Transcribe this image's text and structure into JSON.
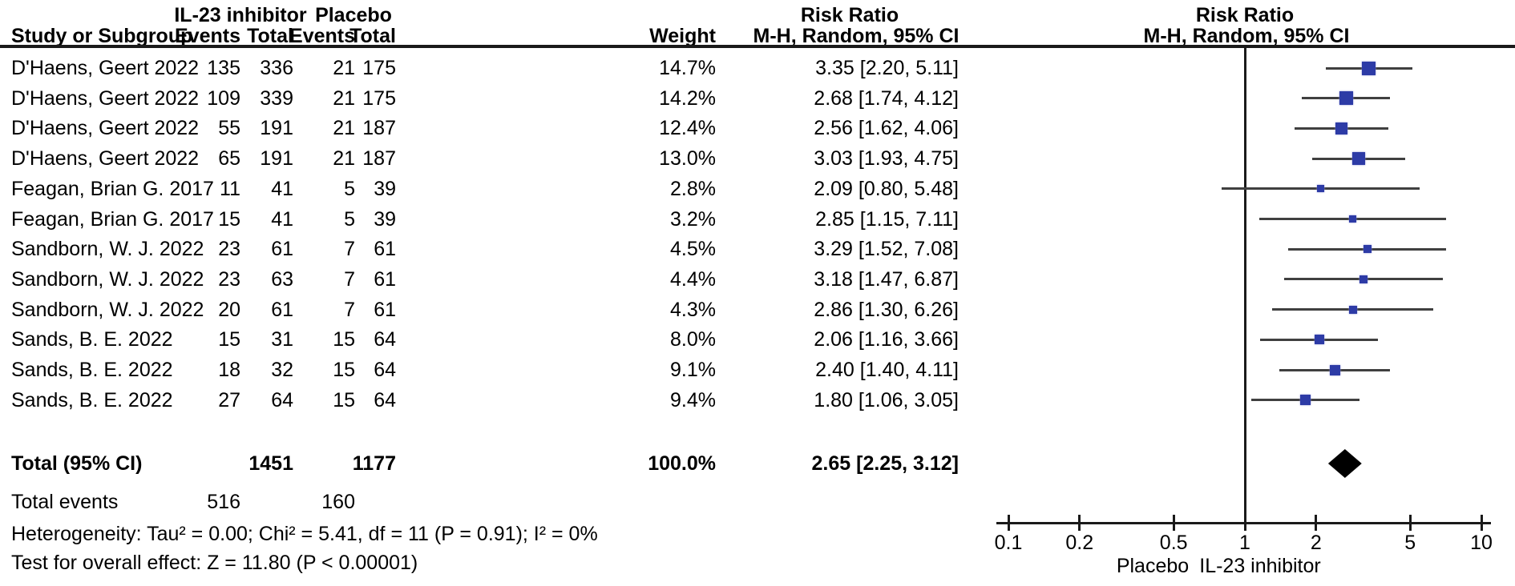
{
  "header": {
    "col_study": "Study or Subgroup",
    "group1": "IL-23 inhibitor",
    "group2": "Placebo",
    "col_events": "Events",
    "col_total": "Total",
    "col_weight": "Weight",
    "rr_title": "Risk Ratio",
    "rr_subtitle": "M-H, Random, 95% CI"
  },
  "chart_data": {
    "type": "forest",
    "x_scale": "log",
    "x_range": [
      0.1,
      10
    ],
    "x_ticks": [
      "0.1",
      "0.2",
      "0.5",
      "1",
      "2",
      "5",
      "10"
    ],
    "axis_labels": {
      "left": "Placebo",
      "right": "IL-23 inhibitor"
    },
    "studies": [
      {
        "study": "D'Haens, Geert 2022",
        "events1": "135",
        "total1": "336",
        "events2": "21",
        "total2": "175",
        "weight": "14.7%",
        "rr": 3.35,
        "lo": 2.2,
        "hi": 5.11,
        "rr_text": "3.35 [2.20, 5.11]"
      },
      {
        "study": "D'Haens, Geert 2022",
        "events1": "109",
        "total1": "339",
        "events2": "21",
        "total2": "175",
        "weight": "14.2%",
        "rr": 2.68,
        "lo": 1.74,
        "hi": 4.12,
        "rr_text": "2.68 [1.74, 4.12]"
      },
      {
        "study": "D'Haens, Geert 2022",
        "events1": "55",
        "total1": "191",
        "events2": "21",
        "total2": "187",
        "weight": "12.4%",
        "rr": 2.56,
        "lo": 1.62,
        "hi": 4.06,
        "rr_text": "2.56 [1.62, 4.06]"
      },
      {
        "study": "D'Haens, Geert 2022",
        "events1": "65",
        "total1": "191",
        "events2": "21",
        "total2": "187",
        "weight": "13.0%",
        "rr": 3.03,
        "lo": 1.93,
        "hi": 4.75,
        "rr_text": "3.03 [1.93, 4.75]"
      },
      {
        "study": "Feagan, Brian G. 2017",
        "events1": "11",
        "total1": "41",
        "events2": "5",
        "total2": "39",
        "weight": "2.8%",
        "rr": 2.09,
        "lo": 0.8,
        "hi": 5.48,
        "rr_text": "2.09 [0.80, 5.48]"
      },
      {
        "study": "Feagan, Brian G. 2017",
        "events1": "15",
        "total1": "41",
        "events2": "5",
        "total2": "39",
        "weight": "3.2%",
        "rr": 2.85,
        "lo": 1.15,
        "hi": 7.11,
        "rr_text": "2.85 [1.15, 7.11]"
      },
      {
        "study": "Sandborn, W. J. 2022",
        "events1": "23",
        "total1": "61",
        "events2": "7",
        "total2": "61",
        "weight": "4.5%",
        "rr": 3.29,
        "lo": 1.52,
        "hi": 7.08,
        "rr_text": "3.29 [1.52, 7.08]"
      },
      {
        "study": "Sandborn, W. J. 2022",
        "events1": "23",
        "total1": "63",
        "events2": "7",
        "total2": "61",
        "weight": "4.4%",
        "rr": 3.18,
        "lo": 1.47,
        "hi": 6.87,
        "rr_text": "3.18 [1.47, 6.87]"
      },
      {
        "study": "Sandborn, W. J. 2022",
        "events1": "20",
        "total1": "61",
        "events2": "7",
        "total2": "61",
        "weight": "4.3%",
        "rr": 2.86,
        "lo": 1.3,
        "hi": 6.26,
        "rr_text": "2.86 [1.30, 6.26]"
      },
      {
        "study": "Sands, B. E. 2022",
        "events1": "15",
        "total1": "31",
        "events2": "15",
        "total2": "64",
        "weight": "8.0%",
        "rr": 2.06,
        "lo": 1.16,
        "hi": 3.66,
        "rr_text": "2.06 [1.16, 3.66]"
      },
      {
        "study": "Sands, B. E. 2022",
        "events1": "18",
        "total1": "32",
        "events2": "15",
        "total2": "64",
        "weight": "9.1%",
        "rr": 2.4,
        "lo": 1.4,
        "hi": 4.11,
        "rr_text": "2.40 [1.40, 4.11]"
      },
      {
        "study": "Sands, B. E. 2022",
        "events1": "27",
        "total1": "64",
        "events2": "15",
        "total2": "64",
        "weight": "9.4%",
        "rr": 1.8,
        "lo": 1.06,
        "hi": 3.05,
        "rr_text": "1.80 [1.06, 3.05]"
      }
    ],
    "total": {
      "label": "Total (95% CI)",
      "total1": "1451",
      "total2": "1177",
      "weight": "100.0%",
      "rr": 2.65,
      "lo": 2.25,
      "hi": 3.12,
      "rr_text": "2.65 [2.25, 3.12]"
    },
    "total_events": {
      "label": "Total events",
      "events1": "516",
      "events2": "160"
    },
    "heterogeneity": "Heterogeneity: Tau² = 0.00; Chi² = 5.41, df = 11 (P = 0.91); I² = 0%",
    "overall_effect": "Test for overall effect: Z = 11.80 (P < 0.00001)"
  },
  "colors": {
    "marker_blue": "#2d3ba6",
    "ci_line": "#404040",
    "diamond": "#000000",
    "text": "#000000"
  }
}
